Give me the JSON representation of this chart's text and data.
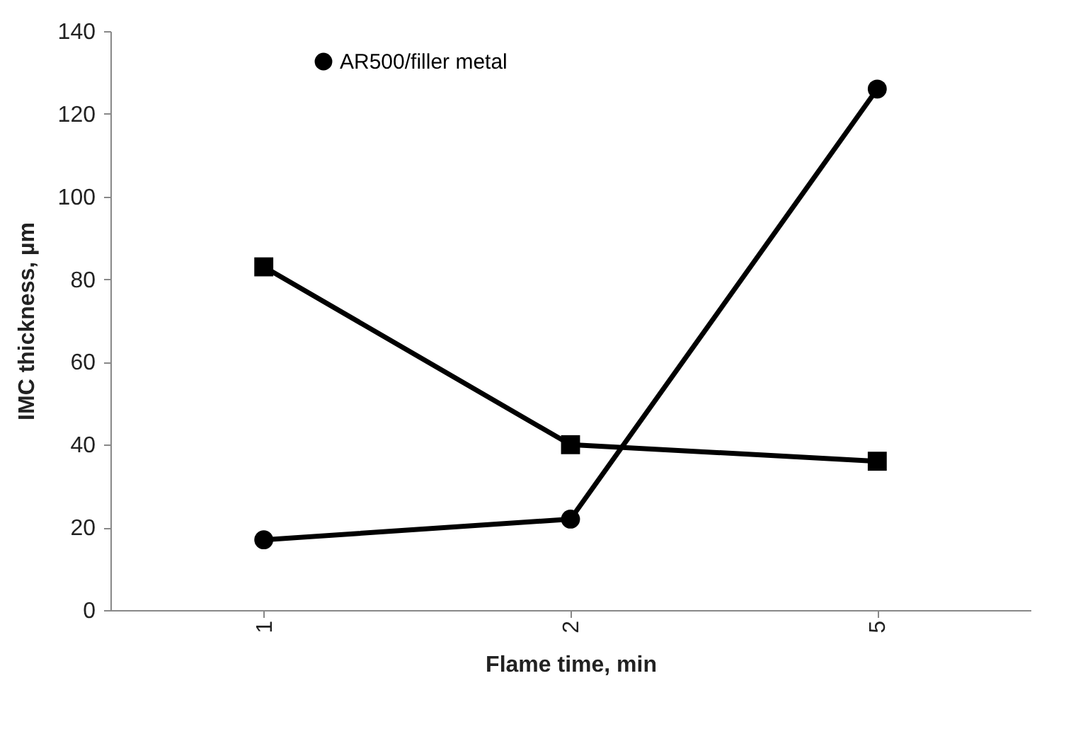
{
  "chart_data": {
    "type": "line",
    "xlabel": "Flame time, min",
    "ylabel": "IMC thickness, µm",
    "categories": [
      "1",
      "2",
      "5"
    ],
    "series": [
      {
        "name": "AR500/filler metal",
        "color": "#000000",
        "marker": "circle",
        "values": [
          17,
          22,
          126
        ]
      },
      {
        "color": "#000000",
        "marker": "square",
        "values": [
          83,
          40,
          36
        ]
      }
    ],
    "ylim": [
      0,
      140
    ],
    "yticks": [
      0,
      20,
      40,
      60,
      80,
      100,
      120,
      140
    ],
    "legend": "top",
    "line_style": "solid"
  }
}
